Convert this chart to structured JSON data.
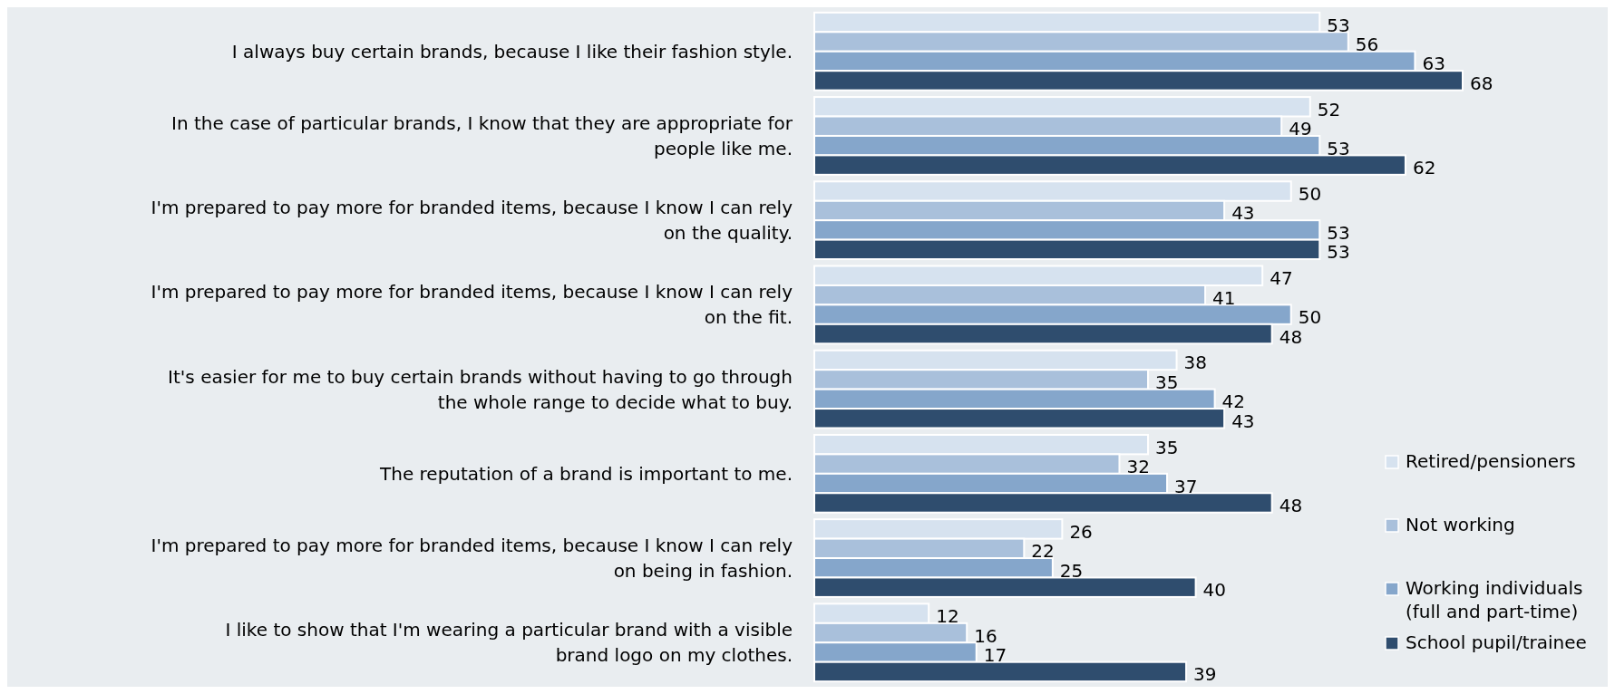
{
  "chart_data": {
    "type": "bar",
    "orientation": "horizontal",
    "data_labels": true,
    "legend": "bottom right",
    "categories": [
      "I always buy certain brands, because I like their fashion style.",
      "In the case of particular brands, I know that they are appropriate for people like me.",
      "I'm prepared to pay more for branded items, because I know I can rely on the quality.",
      "I'm prepared to pay more for branded items, because I know I can rely on the fit.",
      "It's easier for me to buy certain brands without having to go through the whole range to decide what to buy.",
      "The reputation of a brand is important to me.",
      "I'm prepared to pay more for branded items, because I know I can rely on being in fashion.",
      "I like to show that I'm wearing a particular brand with a visible brand logo on my clothes."
    ],
    "series": [
      {
        "name": "Retired/pensioners",
        "color": "#d6e2ef",
        "values": [
          53,
          52,
          50,
          47,
          38,
          35,
          26,
          12
        ]
      },
      {
        "name": "Not working",
        "color": "#a9c0db",
        "values": [
          56,
          49,
          43,
          41,
          35,
          32,
          22,
          16
        ]
      },
      {
        "name": "Working individuals (full and part-time)",
        "color": "#85a6cb",
        "values": [
          63,
          53,
          53,
          50,
          42,
          37,
          25,
          17
        ]
      },
      {
        "name": "School pupil/trainee",
        "color": "#2f4d6e",
        "values": [
          68,
          62,
          53,
          48,
          43,
          48,
          40,
          39
        ]
      }
    ]
  }
}
